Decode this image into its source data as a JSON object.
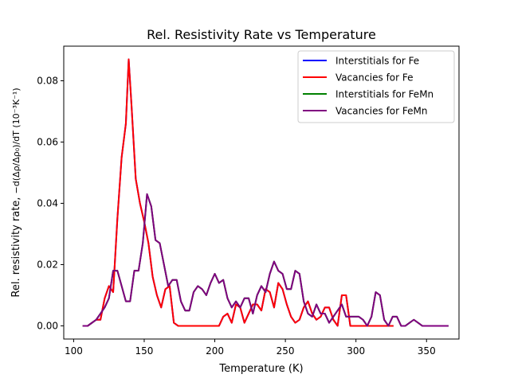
{
  "chart_data": {
    "type": "line",
    "title": "Rel. Resistivity Rate vs Temperature",
    "xlabel": "Temperature (K)",
    "ylabel_prefix": "Rel. resistivity rate, ",
    "ylabel_math": "−d(Δρ/Δρ₀)/dT (10⁻³K⁻¹)",
    "xlim": [
      93,
      373
    ],
    "ylim": [
      -0.0043,
      0.0913
    ],
    "xticks": [
      100,
      150,
      200,
      250,
      300,
      350
    ],
    "yticks": [
      0.0,
      0.02,
      0.04,
      0.06,
      0.08
    ],
    "xtick_labels": [
      "100",
      "150",
      "200",
      "250",
      "300",
      "350"
    ],
    "ytick_labels": [
      "0.00",
      "0.02",
      "0.04",
      "0.06",
      "0.08"
    ],
    "grid": false,
    "legend_placement": "top-right",
    "series": [
      {
        "name": "Interstitials for Fe",
        "color": "#0000ff",
        "x": [
          107,
          110,
          113,
          116,
          119,
          122,
          125,
          128,
          131,
          134,
          137,
          139,
          141,
          144,
          147,
          150,
          153,
          156,
          159,
          162,
          165,
          168,
          171,
          174,
          177,
          180,
          185,
          190,
          195,
          200,
          203,
          206,
          209,
          212,
          215,
          218,
          221,
          224,
          227,
          230,
          233,
          236,
          239,
          242,
          245,
          248,
          251,
          254,
          257,
          260,
          263,
          266,
          269,
          272,
          275,
          278,
          281,
          284,
          287,
          290,
          293,
          296,
          299,
          302,
          305,
          308,
          311,
          314,
          317,
          320,
          323,
          326
        ],
        "y": [
          0.0,
          0.0,
          0.001,
          0.002,
          0.002,
          0.009,
          0.013,
          0.011,
          0.035,
          0.055,
          0.066,
          0.087,
          0.072,
          0.048,
          0.04,
          0.034,
          0.027,
          0.016,
          0.01,
          0.006,
          0.012,
          0.013,
          0.001,
          0.0,
          0.0,
          0.0,
          0.0,
          0.0,
          0.0,
          0.0,
          0.0,
          0.003,
          0.004,
          0.001,
          0.007,
          0.006,
          0.001,
          0.004,
          0.007,
          0.007,
          0.005,
          0.012,
          0.011,
          0.006,
          0.014,
          0.012,
          0.007,
          0.003,
          0.001,
          0.002,
          0.006,
          0.008,
          0.004,
          0.002,
          0.003,
          0.006,
          0.006,
          0.002,
          0.0,
          0.01,
          0.01,
          0.0,
          0.0,
          0.0,
          0.0,
          0.0,
          0.0,
          0.0,
          0.0,
          0.0,
          0.0,
          0.0
        ]
      },
      {
        "name": "Vacancies for Fe",
        "color": "#ff0000",
        "x": [
          107,
          110,
          113,
          116,
          119,
          122,
          125,
          128,
          131,
          134,
          137,
          139,
          141,
          144,
          147,
          150,
          153,
          156,
          159,
          162,
          165,
          168,
          171,
          174,
          177,
          180,
          185,
          190,
          195,
          200,
          203,
          206,
          209,
          212,
          215,
          218,
          221,
          224,
          227,
          230,
          233,
          236,
          239,
          242,
          245,
          248,
          251,
          254,
          257,
          260,
          263,
          266,
          269,
          272,
          275,
          278,
          281,
          284,
          287,
          290,
          293,
          296,
          299,
          302,
          305,
          308,
          311,
          314,
          317,
          320,
          323,
          326
        ],
        "y": [
          0.0,
          0.0,
          0.001,
          0.002,
          0.002,
          0.009,
          0.013,
          0.011,
          0.035,
          0.055,
          0.066,
          0.087,
          0.072,
          0.048,
          0.04,
          0.034,
          0.027,
          0.016,
          0.01,
          0.006,
          0.012,
          0.013,
          0.001,
          0.0,
          0.0,
          0.0,
          0.0,
          0.0,
          0.0,
          0.0,
          0.0,
          0.003,
          0.004,
          0.001,
          0.007,
          0.006,
          0.001,
          0.004,
          0.007,
          0.007,
          0.005,
          0.012,
          0.011,
          0.006,
          0.014,
          0.012,
          0.007,
          0.003,
          0.001,
          0.002,
          0.006,
          0.008,
          0.004,
          0.002,
          0.003,
          0.006,
          0.006,
          0.002,
          0.0,
          0.01,
          0.01,
          0.0,
          0.0,
          0.0,
          0.0,
          0.0,
          0.0,
          0.0,
          0.0,
          0.0,
          0.0,
          0.0
        ]
      },
      {
        "name": "Interstitials for FeMn",
        "color": "#008000",
        "x": [
          107,
          110,
          113,
          116,
          119,
          122,
          125,
          128,
          131,
          134,
          137,
          140,
          143,
          146,
          149,
          152,
          155,
          158,
          161,
          164,
          167,
          170,
          173,
          176,
          179,
          182,
          185,
          188,
          191,
          194,
          197,
          200,
          203,
          206,
          209,
          212,
          215,
          218,
          221,
          224,
          227,
          230,
          233,
          236,
          239,
          242,
          245,
          248,
          251,
          254,
          257,
          260,
          263,
          266,
          269,
          272,
          275,
          278,
          281,
          284,
          287,
          290,
          293,
          296,
          299,
          302,
          305,
          308,
          311,
          314,
          317,
          320,
          323,
          326,
          329,
          332,
          335,
          338,
          341,
          344,
          347,
          350,
          353,
          356,
          359,
          362,
          365
        ],
        "y": [
          0.0,
          0.0,
          0.001,
          0.002,
          0.004,
          0.006,
          0.009,
          0.018,
          0.018,
          0.013,
          0.008,
          0.008,
          0.018,
          0.018,
          0.027,
          0.043,
          0.039,
          0.028,
          0.027,
          0.02,
          0.013,
          0.015,
          0.015,
          0.008,
          0.005,
          0.005,
          0.011,
          0.013,
          0.012,
          0.01,
          0.014,
          0.017,
          0.014,
          0.015,
          0.009,
          0.006,
          0.008,
          0.006,
          0.009,
          0.009,
          0.004,
          0.01,
          0.013,
          0.011,
          0.017,
          0.021,
          0.018,
          0.017,
          0.012,
          0.012,
          0.018,
          0.017,
          0.008,
          0.004,
          0.003,
          0.007,
          0.004,
          0.004,
          0.001,
          0.003,
          0.005,
          0.007,
          0.003,
          0.003,
          0.003,
          0.003,
          0.002,
          0.0,
          0.003,
          0.011,
          0.01,
          0.002,
          0.0,
          0.003,
          0.003,
          0.0,
          0.0,
          0.001,
          0.002,
          0.001,
          0.0,
          0.0,
          0.0,
          0.0,
          0.0,
          0.0,
          0.0
        ]
      },
      {
        "name": "Vacancies for FeMn",
        "color": "#800080",
        "x": [
          107,
          110,
          113,
          116,
          119,
          122,
          125,
          128,
          131,
          134,
          137,
          140,
          143,
          146,
          149,
          152,
          155,
          158,
          161,
          164,
          167,
          170,
          173,
          176,
          179,
          182,
          185,
          188,
          191,
          194,
          197,
          200,
          203,
          206,
          209,
          212,
          215,
          218,
          221,
          224,
          227,
          230,
          233,
          236,
          239,
          242,
          245,
          248,
          251,
          254,
          257,
          260,
          263,
          266,
          269,
          272,
          275,
          278,
          281,
          284,
          287,
          290,
          293,
          296,
          299,
          302,
          305,
          308,
          311,
          314,
          317,
          320,
          323,
          326,
          329,
          332,
          335,
          338,
          341,
          344,
          347,
          350,
          353,
          356,
          359,
          362,
          365
        ],
        "y": [
          0.0,
          0.0,
          0.001,
          0.002,
          0.004,
          0.006,
          0.009,
          0.018,
          0.018,
          0.013,
          0.008,
          0.008,
          0.018,
          0.018,
          0.027,
          0.043,
          0.039,
          0.028,
          0.027,
          0.02,
          0.013,
          0.015,
          0.015,
          0.008,
          0.005,
          0.005,
          0.011,
          0.013,
          0.012,
          0.01,
          0.014,
          0.017,
          0.014,
          0.015,
          0.009,
          0.006,
          0.008,
          0.006,
          0.009,
          0.009,
          0.004,
          0.01,
          0.013,
          0.011,
          0.017,
          0.021,
          0.018,
          0.017,
          0.012,
          0.012,
          0.018,
          0.017,
          0.008,
          0.004,
          0.003,
          0.007,
          0.004,
          0.004,
          0.001,
          0.003,
          0.005,
          0.007,
          0.003,
          0.003,
          0.003,
          0.003,
          0.002,
          0.0,
          0.003,
          0.011,
          0.01,
          0.002,
          0.0,
          0.003,
          0.003,
          0.0,
          0.0,
          0.001,
          0.002,
          0.001,
          0.0,
          0.0,
          0.0,
          0.0,
          0.0,
          0.0,
          0.0
        ]
      }
    ]
  }
}
